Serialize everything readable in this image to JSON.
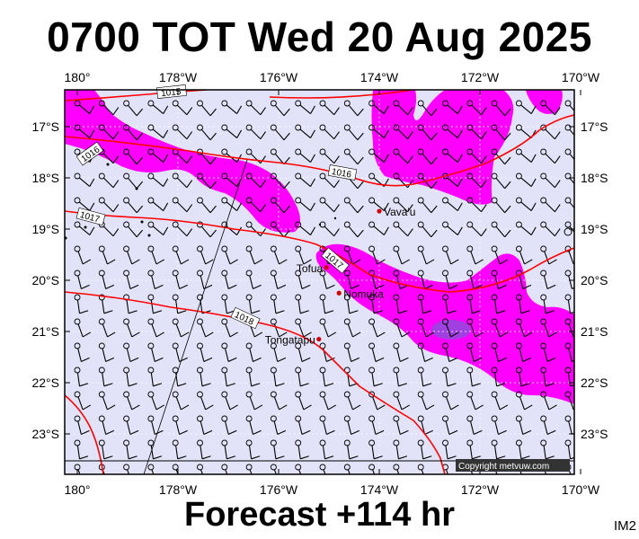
{
  "title": "0700 TOT Wed 20 Aug 2025",
  "subtitle": "Forecast +114 hr",
  "image_code": "IM2",
  "copyright": "Copyright metvuw.com",
  "longitude_labels": [
    "180°",
    "178°W",
    "176°W",
    "174°W",
    "172°W",
    "170°W"
  ],
  "latitude_labels": [
    "17°S",
    "18°S",
    "19°S",
    "20°S",
    "21°S",
    "22°S",
    "23°S"
  ],
  "places": [
    {
      "name": "Vava'u",
      "lon": -174.0,
      "lat": -18.65
    },
    {
      "name": "Tofua",
      "lon": -175.05,
      "lat": -19.75
    },
    {
      "name": "Nomuka",
      "lon": -174.8,
      "lat": -20.25
    },
    {
      "name": "Tongatapu",
      "lon": -175.2,
      "lat": -21.15
    }
  ],
  "isobar_labels": [
    "1015",
    "1016",
    "1016",
    "1017",
    "1017",
    "1018"
  ],
  "colors": {
    "background": "#e2e2f8",
    "precip_light": "#ff00ff",
    "precip_heavy": "#a040e0",
    "isobar": "#ff0000",
    "place_marker": "#cc0000"
  }
}
